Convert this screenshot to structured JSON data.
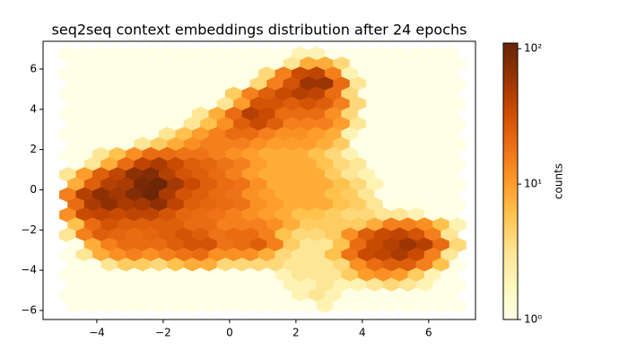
{
  "chart_data": {
    "type": "hexbin",
    "title": "seq2seq context embeddings distribution after 24 epochs",
    "colorbar_label": "counts",
    "colormap": [
      "#ffffe5",
      "#fff7bc",
      "#fee391",
      "#fec44f",
      "#fe9929",
      "#ec7014",
      "#cc4c02",
      "#993404",
      "#662506"
    ],
    "color_scale": "log",
    "clim": [
      1,
      110
    ],
    "cticks": [
      {
        "value": 1,
        "label": "10⁰"
      },
      {
        "value": 10,
        "label": "10¹"
      },
      {
        "value": 100,
        "label": "10²"
      }
    ],
    "xlim": [
      -5.62,
      7.41
    ],
    "ylim": [
      -6.45,
      7.38
    ],
    "xticks": [
      {
        "value": -4,
        "label": "−4"
      },
      {
        "value": -2,
        "label": "−2"
      },
      0,
      2,
      4,
      6
    ],
    "yticks": [
      {
        "value": -6,
        "label": "−6"
      },
      {
        "value": -4,
        "label": "−4"
      },
      {
        "value": -2,
        "label": "−2"
      },
      0,
      2,
      4,
      6
    ],
    "x": [
      -4.75,
      -4.25,
      -3.75,
      -3.25,
      -2.75,
      -2.25,
      -1.75,
      -1.25,
      -0.75,
      -0.25,
      0.25,
      0.75,
      1.25,
      1.75,
      2.25,
      2.75,
      3.25,
      3.75,
      4.25,
      4.75,
      5.25,
      5.75,
      6.25,
      6.75
    ],
    "y": [
      6.75,
      6.25,
      5.75,
      5.25,
      4.75,
      4.25,
      3.75,
      3.25,
      2.75,
      2.25,
      1.75,
      1.25,
      0.75,
      0.25,
      -0.25,
      -0.75,
      -1.25,
      -1.75,
      -2.25,
      -2.75,
      -3.25,
      -3.75,
      -4.25,
      -4.75,
      -5.25,
      -5.75
    ],
    "values": [
      [
        1,
        1,
        1,
        1,
        1,
        1,
        1,
        1,
        1,
        1,
        1,
        1,
        1,
        1,
        2,
        2,
        1,
        1,
        1,
        1,
        1,
        1,
        1,
        1
      ],
      [
        1,
        1,
        1,
        1,
        1,
        1,
        1,
        1,
        1,
        1,
        1,
        1,
        1,
        3,
        8,
        8,
        4,
        1,
        1,
        1,
        1,
        1,
        1,
        1
      ],
      [
        1,
        1,
        1,
        1,
        1,
        1,
        1,
        1,
        1,
        1,
        1,
        1,
        4,
        15,
        35,
        40,
        15,
        2,
        1,
        1,
        1,
        1,
        1,
        1
      ],
      [
        1,
        1,
        1,
        1,
        1,
        1,
        1,
        1,
        1,
        1,
        1,
        4,
        15,
        30,
        60,
        60,
        20,
        3,
        1,
        1,
        1,
        1,
        1,
        1
      ],
      [
        1,
        1,
        1,
        1,
        1,
        1,
        1,
        1,
        1,
        1,
        5,
        15,
        25,
        35,
        45,
        40,
        20,
        4,
        1,
        1,
        1,
        1,
        1,
        1
      ],
      [
        1,
        1,
        1,
        1,
        1,
        1,
        1,
        1,
        1,
        3,
        10,
        30,
        30,
        25,
        30,
        25,
        15,
        4,
        1,
        1,
        1,
        1,
        1,
        1
      ],
      [
        1,
        1,
        1,
        1,
        1,
        1,
        1,
        1,
        3,
        8,
        20,
        45,
        35,
        20,
        20,
        20,
        12,
        4,
        1,
        1,
        1,
        1,
        1,
        1
      ],
      [
        1,
        1,
        1,
        1,
        1,
        1,
        1,
        3,
        6,
        12,
        25,
        35,
        25,
        15,
        15,
        15,
        10,
        3,
        1,
        1,
        1,
        1,
        1,
        1
      ],
      [
        1,
        1,
        1,
        1,
        1,
        1,
        3,
        6,
        10,
        15,
        20,
        20,
        15,
        12,
        12,
        10,
        8,
        2,
        1,
        1,
        1,
        1,
        1,
        1
      ],
      [
        1,
        1,
        1,
        1,
        3,
        5,
        8,
        12,
        15,
        15,
        15,
        12,
        10,
        10,
        10,
        8,
        5,
        1,
        1,
        1,
        1,
        1,
        1,
        1
      ],
      [
        1,
        1,
        3,
        6,
        12,
        20,
        20,
        18,
        18,
        15,
        12,
        10,
        8,
        8,
        8,
        6,
        4,
        2,
        1,
        1,
        1,
        1,
        1,
        1
      ],
      [
        1,
        3,
        8,
        20,
        40,
        50,
        35,
        25,
        22,
        18,
        15,
        10,
        8,
        8,
        8,
        6,
        4,
        3,
        1,
        1,
        1,
        1,
        1,
        1
      ],
      [
        3,
        10,
        25,
        40,
        70,
        80,
        45,
        30,
        25,
        20,
        15,
        10,
        8,
        8,
        8,
        8,
        5,
        3,
        2,
        1,
        1,
        1,
        1,
        1
      ],
      [
        8,
        25,
        45,
        50,
        90,
        100,
        55,
        35,
        25,
        20,
        18,
        12,
        8,
        8,
        8,
        8,
        6,
        4,
        2,
        1,
        1,
        1,
        1,
        1
      ],
      [
        15,
        45,
        70,
        55,
        80,
        100,
        50,
        30,
        25,
        20,
        18,
        12,
        10,
        8,
        8,
        8,
        6,
        5,
        3,
        1,
        1,
        1,
        1,
        1
      ],
      [
        20,
        50,
        70,
        50,
        55,
        70,
        40,
        25,
        22,
        20,
        18,
        12,
        10,
        8,
        8,
        8,
        6,
        5,
        3,
        1,
        1,
        1,
        1,
        1
      ],
      [
        12,
        35,
        40,
        35,
        40,
        40,
        30,
        22,
        20,
        18,
        15,
        12,
        10,
        8,
        6,
        6,
        5,
        4,
        4,
        3,
        3,
        2,
        1,
        1
      ],
      [
        6,
        20,
        30,
        25,
        25,
        25,
        25,
        20,
        20,
        15,
        15,
        15,
        12,
        8,
        5,
        5,
        5,
        5,
        8,
        15,
        15,
        12,
        6,
        2
      ],
      [
        3,
        15,
        25,
        22,
        20,
        22,
        25,
        30,
        25,
        18,
        20,
        20,
        15,
        6,
        4,
        4,
        5,
        12,
        25,
        35,
        40,
        30,
        15,
        3
      ],
      [
        1,
        8,
        15,
        20,
        20,
        20,
        25,
        30,
        30,
        18,
        20,
        25,
        15,
        5,
        3,
        3,
        6,
        20,
        35,
        45,
        60,
        45,
        20,
        4
      ],
      [
        1,
        3,
        8,
        12,
        15,
        12,
        15,
        18,
        20,
        12,
        12,
        12,
        8,
        4,
        3,
        3,
        6,
        18,
        35,
        40,
        50,
        35,
        15,
        3
      ],
      [
        1,
        1,
        3,
        5,
        5,
        4,
        6,
        8,
        8,
        4,
        4,
        4,
        4,
        3,
        3,
        3,
        4,
        12,
        20,
        25,
        25,
        15,
        6,
        1
      ],
      [
        1,
        1,
        1,
        1,
        1,
        1,
        1,
        1,
        1,
        1,
        1,
        1,
        1,
        2,
        3,
        3,
        3,
        5,
        10,
        12,
        10,
        5,
        2,
        1
      ],
      [
        1,
        1,
        1,
        1,
        1,
        1,
        1,
        1,
        1,
        1,
        1,
        1,
        1,
        2,
        2,
        3,
        2,
        2,
        3,
        4,
        3,
        2,
        1,
        1
      ],
      [
        1,
        1,
        1,
        1,
        1,
        1,
        1,
        1,
        1,
        1,
        1,
        1,
        1,
        1,
        2,
        3,
        2,
        1,
        1,
        1,
        1,
        1,
        1,
        1
      ],
      [
        1,
        1,
        1,
        1,
        1,
        1,
        1,
        1,
        1,
        1,
        1,
        1,
        1,
        1,
        1,
        2,
        1,
        1,
        1,
        1,
        1,
        1,
        1,
        1
      ]
    ]
  }
}
